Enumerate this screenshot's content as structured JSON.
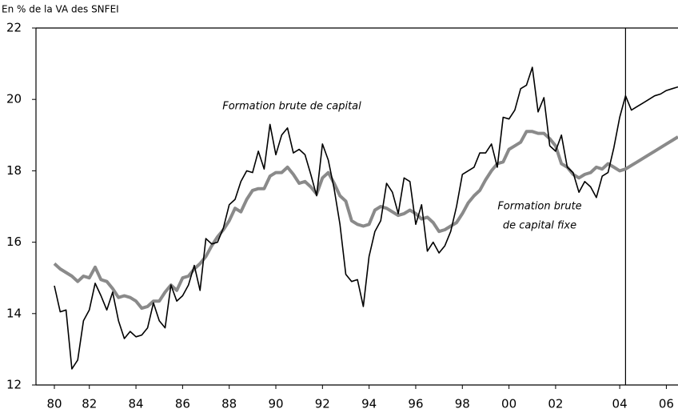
{
  "chart_data": {
    "type": "line",
    "y_axis_label": "En % de la VA des SNFEI",
    "categories": [
      "80",
      null,
      null,
      null,
      null,
      null,
      "82",
      null,
      null,
      null,
      null,
      null,
      null,
      null,
      "84",
      null,
      null,
      null,
      null,
      null,
      null,
      null,
      "86",
      null,
      null,
      null,
      null,
      null,
      null,
      null,
      "88",
      null,
      null,
      null,
      null,
      null,
      null,
      null,
      "90",
      null,
      null,
      null,
      null,
      null,
      null,
      null,
      "92",
      null,
      null,
      null,
      null,
      null,
      null,
      null,
      "94",
      null,
      null,
      null,
      null,
      null,
      null,
      null,
      "96",
      null,
      null,
      null,
      null,
      null,
      null,
      null,
      "98",
      null,
      null,
      null,
      null,
      null,
      null,
      null,
      "00",
      null,
      null,
      null,
      null,
      null,
      null,
      null,
      "02",
      null,
      null,
      null,
      null,
      null,
      null,
      null,
      null,
      null,
      null,
      "04",
      null,
      null,
      null,
      null,
      null,
      null,
      null,
      "06",
      null,
      null
    ],
    "series": [
      {
        "color": "#000000",
        "width": 1.6,
        "values": [
          14.78,
          14.05,
          14.1,
          12.45,
          12.7,
          13.8,
          14.1,
          14.85,
          14.5,
          14.1,
          14.6,
          13.8,
          13.3,
          13.5,
          13.35,
          13.4,
          13.6,
          14.3,
          13.8,
          13.6,
          14.8,
          14.35,
          14.5,
          14.8,
          15.35,
          14.65,
          16.1,
          15.95,
          16.0,
          16.4,
          17.05,
          17.2,
          17.7,
          18.0,
          17.95,
          18.55,
          18.05,
          19.3,
          18.45,
          19.0,
          19.2,
          18.5,
          18.6,
          18.45,
          17.9,
          17.3,
          18.75,
          18.3,
          17.5,
          16.5,
          15.1,
          14.9,
          14.95,
          14.2,
          15.6,
          16.3,
          16.6,
          17.65,
          17.4,
          16.8,
          17.8,
          17.7,
          16.5,
          17.05,
          15.75,
          16.0,
          15.7,
          15.9,
          16.3,
          17.0,
          17.9,
          18.0,
          18.1,
          18.5,
          18.5,
          18.75,
          18.1,
          19.5,
          19.45,
          19.7,
          20.3,
          20.4,
          20.9,
          19.65,
          20.05,
          18.7,
          18.55,
          19.0,
          18.1,
          17.95,
          17.4,
          17.7,
          17.55,
          17.25,
          17.85,
          17.95,
          18.65,
          19.5,
          20.1,
          19.7,
          19.8,
          19.9,
          20.0,
          20.1,
          20.15,
          20.25,
          20.3,
          20.35
        ]
      },
      {
        "color": "#8a8a8a",
        "width": 4,
        "values": [
          15.4,
          15.25,
          15.15,
          15.05,
          14.9,
          15.05,
          15.0,
          15.3,
          14.95,
          14.9,
          14.7,
          14.45,
          14.5,
          14.45,
          14.35,
          14.15,
          14.2,
          14.35,
          14.35,
          14.6,
          14.8,
          14.65,
          15.0,
          15.05,
          15.25,
          15.4,
          15.6,
          15.9,
          16.15,
          16.35,
          16.6,
          16.95,
          16.85,
          17.2,
          17.45,
          17.5,
          17.5,
          17.85,
          17.95,
          17.95,
          18.1,
          17.9,
          17.65,
          17.7,
          17.55,
          17.35,
          17.8,
          17.95,
          17.65,
          17.3,
          17.15,
          16.6,
          16.5,
          16.45,
          16.5,
          16.9,
          17.0,
          16.95,
          16.85,
          16.75,
          16.8,
          16.9,
          16.8,
          16.65,
          16.7,
          16.55,
          16.3,
          16.35,
          16.45,
          16.55,
          16.8,
          17.1,
          17.3,
          17.45,
          17.75,
          18.0,
          18.2,
          18.25,
          18.6,
          18.7,
          18.8,
          19.1,
          19.1,
          19.05,
          19.05,
          18.9,
          18.7,
          18.2,
          18.1,
          17.9,
          17.8,
          17.9,
          17.95,
          18.1,
          18.05,
          18.2,
          18.1,
          18.0,
          18.05,
          18.15,
          18.25,
          18.35,
          18.45,
          18.55,
          18.65,
          18.75,
          18.85,
          18.95
        ]
      }
    ],
    "annotations": [
      {
        "lines": [
          "Formation brute de capital"
        ]
      },
      {
        "lines": [
          "Formation brute",
          "de capital fixe"
        ]
      }
    ],
    "vertical_line_at": 98,
    "ylim": [
      12,
      22
    ],
    "yticks": [
      12,
      14,
      16,
      18,
      20,
      22
    ],
    "grid": false
  }
}
